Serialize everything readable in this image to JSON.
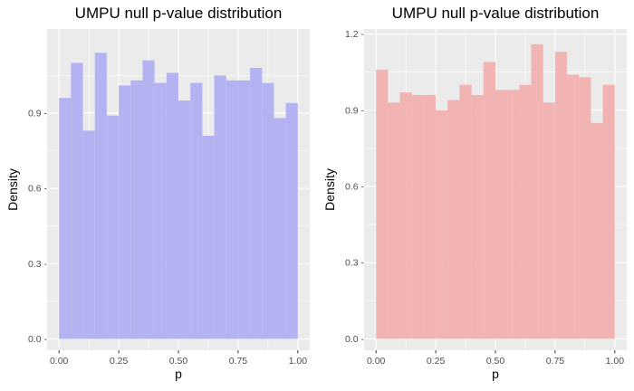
{
  "chart_data": [
    {
      "type": "histogram",
      "title": "UMPU null p-value distribution",
      "xlabel": "p",
      "ylabel": "Density",
      "fill_color": "#b3b3f2",
      "panel_bg": "#ebebeb",
      "grid": true,
      "xlim": [
        -0.05,
        1.05
      ],
      "ylim": [
        -0.045,
        1.235
      ],
      "x_ticks": [
        0.0,
        0.25,
        0.5,
        0.75,
        1.0
      ],
      "x_tick_labels": [
        "0.00",
        "0.25",
        "0.50",
        "0.75",
        "1.00"
      ],
      "y_ticks": [
        0.0,
        0.3,
        0.6,
        0.9
      ],
      "y_tick_labels": [
        "0.0 -",
        "0.3 -",
        "0.6 -",
        "0.9 -"
      ],
      "bin_edges": [
        0.0,
        0.05,
        0.1,
        0.15,
        0.2,
        0.25,
        0.3,
        0.35,
        0.4,
        0.45,
        0.5,
        0.55,
        0.6,
        0.65,
        0.7,
        0.75,
        0.8,
        0.85,
        0.9,
        0.95,
        1.0
      ],
      "values": [
        0.96,
        1.1,
        0.83,
        1.14,
        0.89,
        1.01,
        1.03,
        1.11,
        1.02,
        1.06,
        0.95,
        1.02,
        0.81,
        1.05,
        1.03,
        1.03,
        1.08,
        1.02,
        0.88,
        0.94
      ]
    },
    {
      "type": "histogram",
      "title": "UMPU null p-value distribution",
      "xlabel": "p",
      "ylabel": "Density",
      "fill_color": "#f2b3b3",
      "panel_bg": "#ebebeb",
      "grid": true,
      "xlim": [
        -0.05,
        1.05
      ],
      "ylim": [
        -0.045,
        1.22
      ],
      "x_ticks": [
        0.0,
        0.25,
        0.5,
        0.75,
        1.0
      ],
      "x_tick_labels": [
        "0.00",
        "0.25",
        "0.50",
        "0.75",
        "1.00"
      ],
      "y_ticks": [
        0.0,
        0.3,
        0.6,
        0.9,
        1.2
      ],
      "y_tick_labels": [
        "0.0 -",
        "0.3 -",
        "0.6 -",
        "0.9 -",
        "1.2 -"
      ],
      "bin_edges": [
        0.0,
        0.05,
        0.1,
        0.15,
        0.2,
        0.25,
        0.3,
        0.35,
        0.4,
        0.45,
        0.5,
        0.55,
        0.6,
        0.65,
        0.7,
        0.75,
        0.8,
        0.85,
        0.9,
        0.95,
        1.0
      ],
      "values": [
        1.06,
        0.93,
        0.97,
        0.96,
        0.96,
        0.9,
        0.94,
        1.0,
        0.96,
        1.09,
        0.98,
        0.98,
        1.0,
        1.16,
        0.93,
        1.13,
        1.04,
        1.03,
        0.85,
        1.0
      ]
    }
  ]
}
